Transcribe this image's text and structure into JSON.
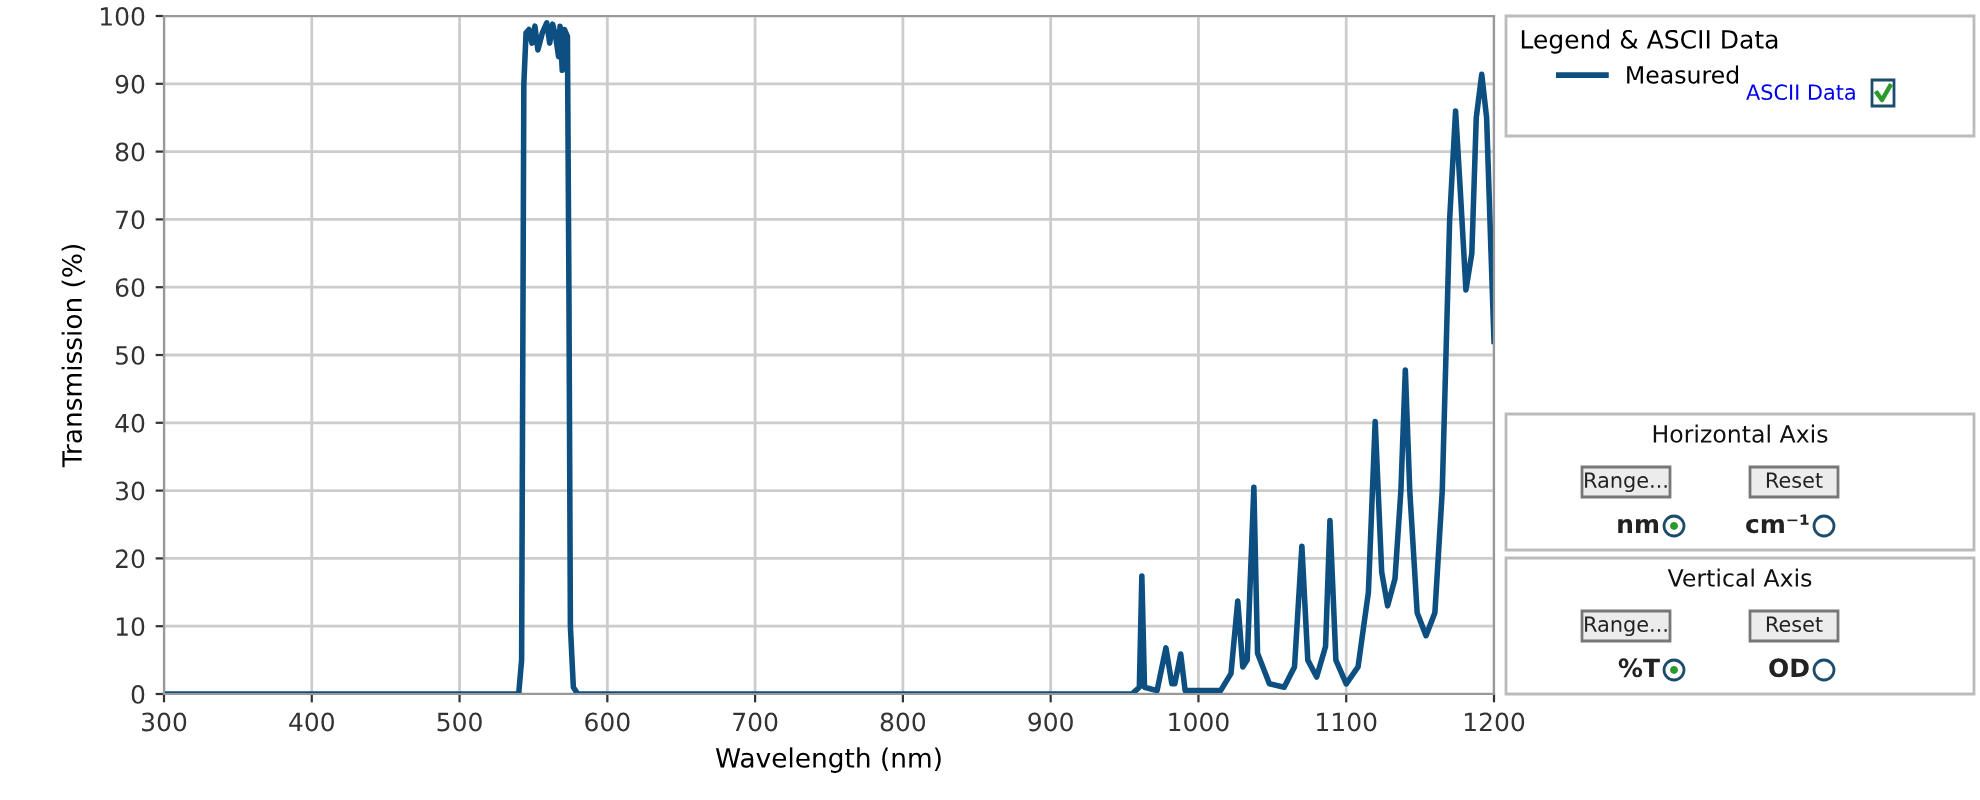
{
  "chart_data": [
    {
      "type": "line",
      "xlabel": "Wavelength (nm)",
      "ylabel": "Transmission (%)",
      "legend_title": "Legend & ASCII Data",
      "legend": "top right",
      "grid": true,
      "xlim": [
        300,
        1200
      ],
      "ylim": [
        0,
        100
      ],
      "xticks": [
        300,
        400,
        500,
        600,
        700,
        800,
        900,
        1000,
        1100,
        1200
      ],
      "yticks": [
        0,
        10,
        20,
        30,
        40,
        50,
        60,
        70,
        80,
        90,
        100
      ],
      "series": [
        {
          "name": "Measured",
          "color": "#0d4f80",
          "x": [
            300,
            540,
            542,
            543.5,
            545,
            547,
            549,
            551,
            553,
            556,
            559,
            561,
            563,
            565,
            567,
            568,
            569.5,
            571,
            573,
            574,
            575,
            577,
            580,
            955,
            960,
            961.7,
            963.5,
            972,
            978,
            982,
            984,
            988,
            991,
            1015,
            1022,
            1026.6,
            1030,
            1033,
            1037.5,
            1040,
            1048,
            1058,
            1065,
            1070,
            1074,
            1080,
            1086,
            1089,
            1093,
            1100,
            1108,
            1115,
            1119.6,
            1124,
            1128,
            1133,
            1137,
            1140,
            1143,
            1148,
            1154,
            1160,
            1165,
            1170,
            1174,
            1177,
            1181,
            1185,
            1188,
            1191.7,
            1195,
            1198,
            1200
          ],
          "values": [
            0,
            0,
            5,
            90,
            97.5,
            98,
            96,
            98.5,
            95,
            97.5,
            99,
            96,
            98.8,
            97,
            94,
            98.5,
            92,
            98,
            97,
            60,
            10,
            1,
            0,
            0,
            1,
            17.4,
            1,
            0.5,
            6.8,
            1.5,
            1.5,
            5.9,
            0.5,
            0.5,
            3,
            13.7,
            4,
            5,
            30.5,
            6,
            1.5,
            1,
            4,
            21.8,
            5,
            2.5,
            7,
            25.6,
            5,
            1.5,
            4,
            15,
            40.2,
            18,
            13,
            17,
            30,
            47.8,
            30,
            12,
            8.6,
            12,
            30,
            70,
            86,
            75,
            59.6,
            65,
            85,
            91.4,
            85,
            65,
            52
          ]
        }
      ]
    },
    {
      "type": "other",
      "annotations": [
        "ASCII Data",
        "Horizontal Axis",
        "Range...",
        "Reset",
        "nm",
        "cm⁻¹",
        "Vertical Axis",
        "Range...",
        "Reset",
        "%T",
        "OD"
      ]
    }
  ]
}
